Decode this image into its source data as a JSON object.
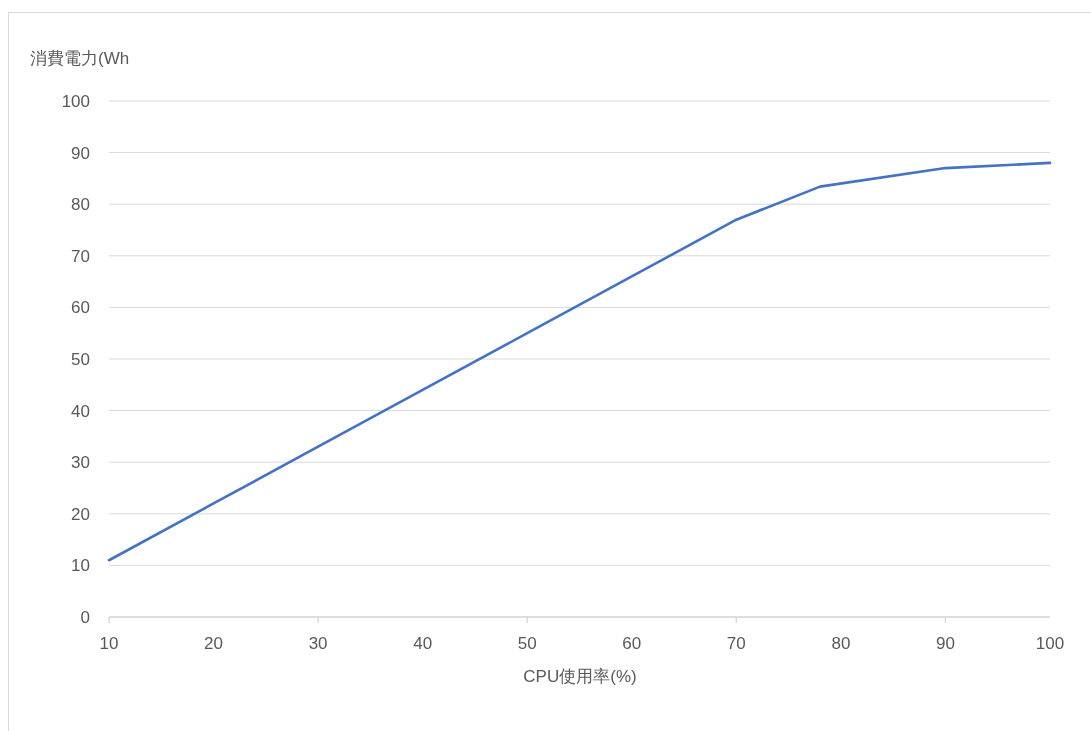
{
  "chart_data": {
    "type": "line",
    "ylabel": "消費電力(Wh",
    "xlabel": "CPU使用率(%)",
    "x": [
      10,
      20,
      30,
      40,
      50,
      60,
      70,
      78,
      90,
      100
    ],
    "series": [
      {
        "color": "#4472c4",
        "values": [
          11,
          22,
          33,
          44,
          55,
          66,
          77,
          83.4,
          87,
          88
        ]
      }
    ],
    "xlim": [
      10,
      100
    ],
    "xticks": [
      10,
      20,
      30,
      40,
      50,
      60,
      70,
      80,
      90,
      100
    ],
    "ylim": [
      0,
      100
    ],
    "yticks": [
      0,
      10,
      20,
      30,
      40,
      50,
      60,
      70,
      80,
      90,
      100
    ],
    "grid": "y"
  }
}
